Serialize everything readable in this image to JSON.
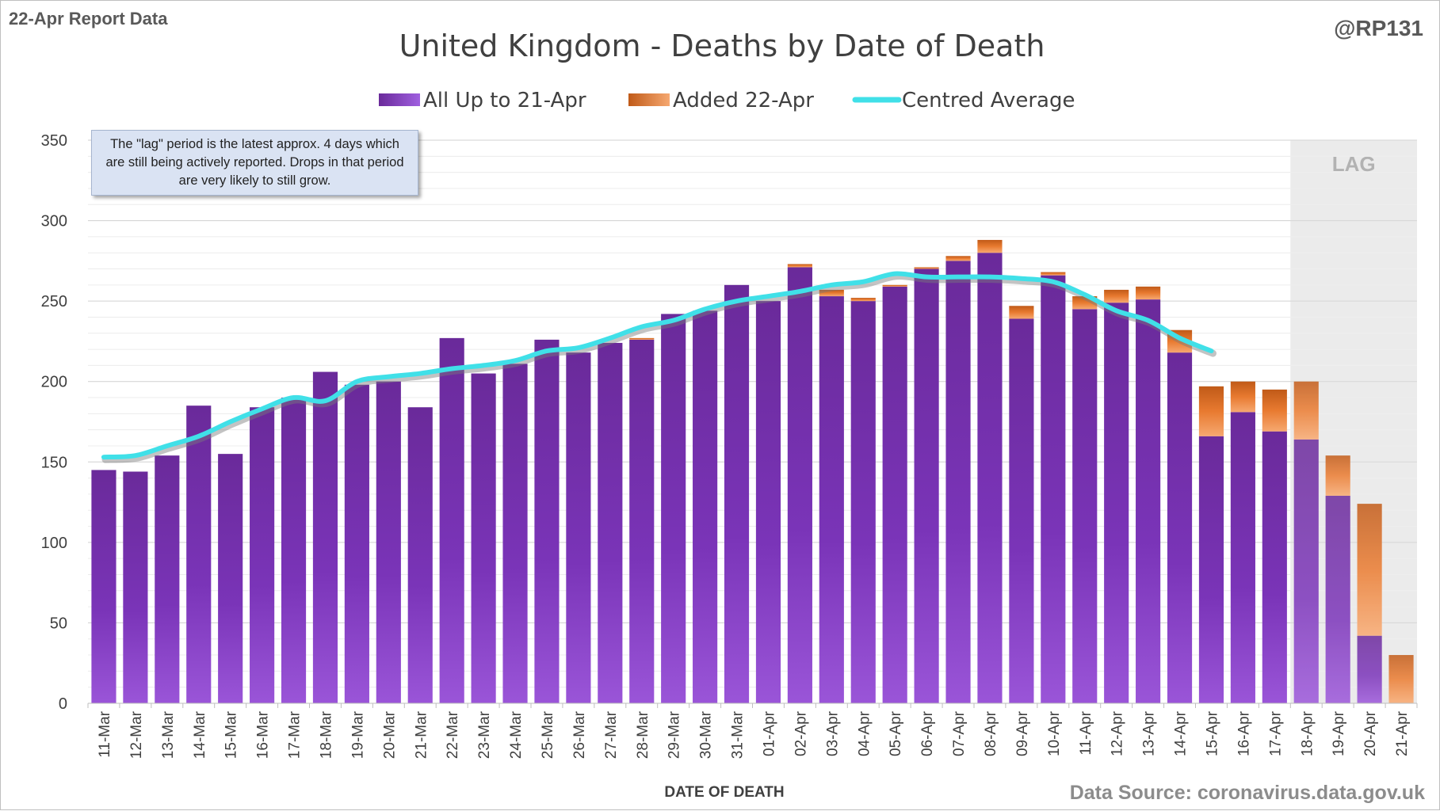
{
  "header": {
    "report_label": "22-Apr Report Data",
    "handle": "@RP131",
    "source": "Data Source: coronavirus.data.gov.uk"
  },
  "chart_data": {
    "type": "bar",
    "stacked": true,
    "title": "United Kingdom - Deaths by Date of Death",
    "xlabel": "DATE OF DEATH",
    "ylabel": "",
    "ylim": [
      0,
      350
    ],
    "yticks": [
      0,
      50,
      100,
      150,
      200,
      250,
      300,
      350
    ],
    "grid": true,
    "legend_position": "top",
    "categories": [
      "11-Mar",
      "12-Mar",
      "13-Mar",
      "14-Mar",
      "15-Mar",
      "16-Mar",
      "17-Mar",
      "18-Mar",
      "19-Mar",
      "20-Mar",
      "21-Mar",
      "22-Mar",
      "23-Mar",
      "24-Mar",
      "25-Mar",
      "26-Mar",
      "27-Mar",
      "28-Mar",
      "29-Mar",
      "30-Mar",
      "31-Mar",
      "01-Apr",
      "02-Apr",
      "03-Apr",
      "04-Apr",
      "05-Apr",
      "06-Apr",
      "07-Apr",
      "08-Apr",
      "09-Apr",
      "10-Apr",
      "11-Apr",
      "12-Apr",
      "13-Apr",
      "14-Apr",
      "15-Apr",
      "16-Apr",
      "17-Apr",
      "18-Apr",
      "19-Apr",
      "20-Apr",
      "21-Apr"
    ],
    "series": [
      {
        "name": "All Up to 21-Apr",
        "color": "#7030a0",
        "values": [
          145,
          144,
          154,
          185,
          155,
          184,
          190,
          206,
          198,
          200,
          184,
          227,
          205,
          211,
          226,
          218,
          224,
          226,
          242,
          244,
          260,
          250,
          271,
          253,
          250,
          259,
          270,
          275,
          280,
          239,
          266,
          245,
          249,
          251,
          218,
          166,
          181,
          169,
          164,
          129,
          42,
          0
        ]
      },
      {
        "name": "Added 22-Apr",
        "color": "#e07020",
        "values": [
          0,
          0,
          0,
          0,
          0,
          0,
          0,
          0,
          0,
          0,
          0,
          0,
          0,
          0,
          0,
          0,
          0,
          1,
          0,
          0,
          0,
          0,
          2,
          4,
          2,
          1,
          1,
          3,
          8,
          8,
          2,
          8,
          8,
          8,
          14,
          31,
          19,
          26,
          36,
          25,
          82,
          30
        ]
      },
      {
        "name": "Centred Average",
        "color": "#40e0e8",
        "type": "line",
        "values": [
          153,
          154,
          160,
          166,
          175,
          183,
          190,
          188,
          200,
          203,
          205,
          208,
          210,
          213,
          219,
          221,
          227,
          234,
          238,
          245,
          250,
          253,
          256,
          260,
          262,
          267,
          265,
          265,
          265,
          264,
          262,
          254,
          244,
          238,
          227,
          219,
          null,
          null,
          null,
          null,
          null,
          null
        ]
      }
    ],
    "annotations": {
      "lag_label": "LAG",
      "lag_start_category": "18-Apr",
      "note": "The \"lag\" period is the latest approx. 4 days which are still being actively reported.  Drops in that period are very likely to still grow."
    }
  }
}
